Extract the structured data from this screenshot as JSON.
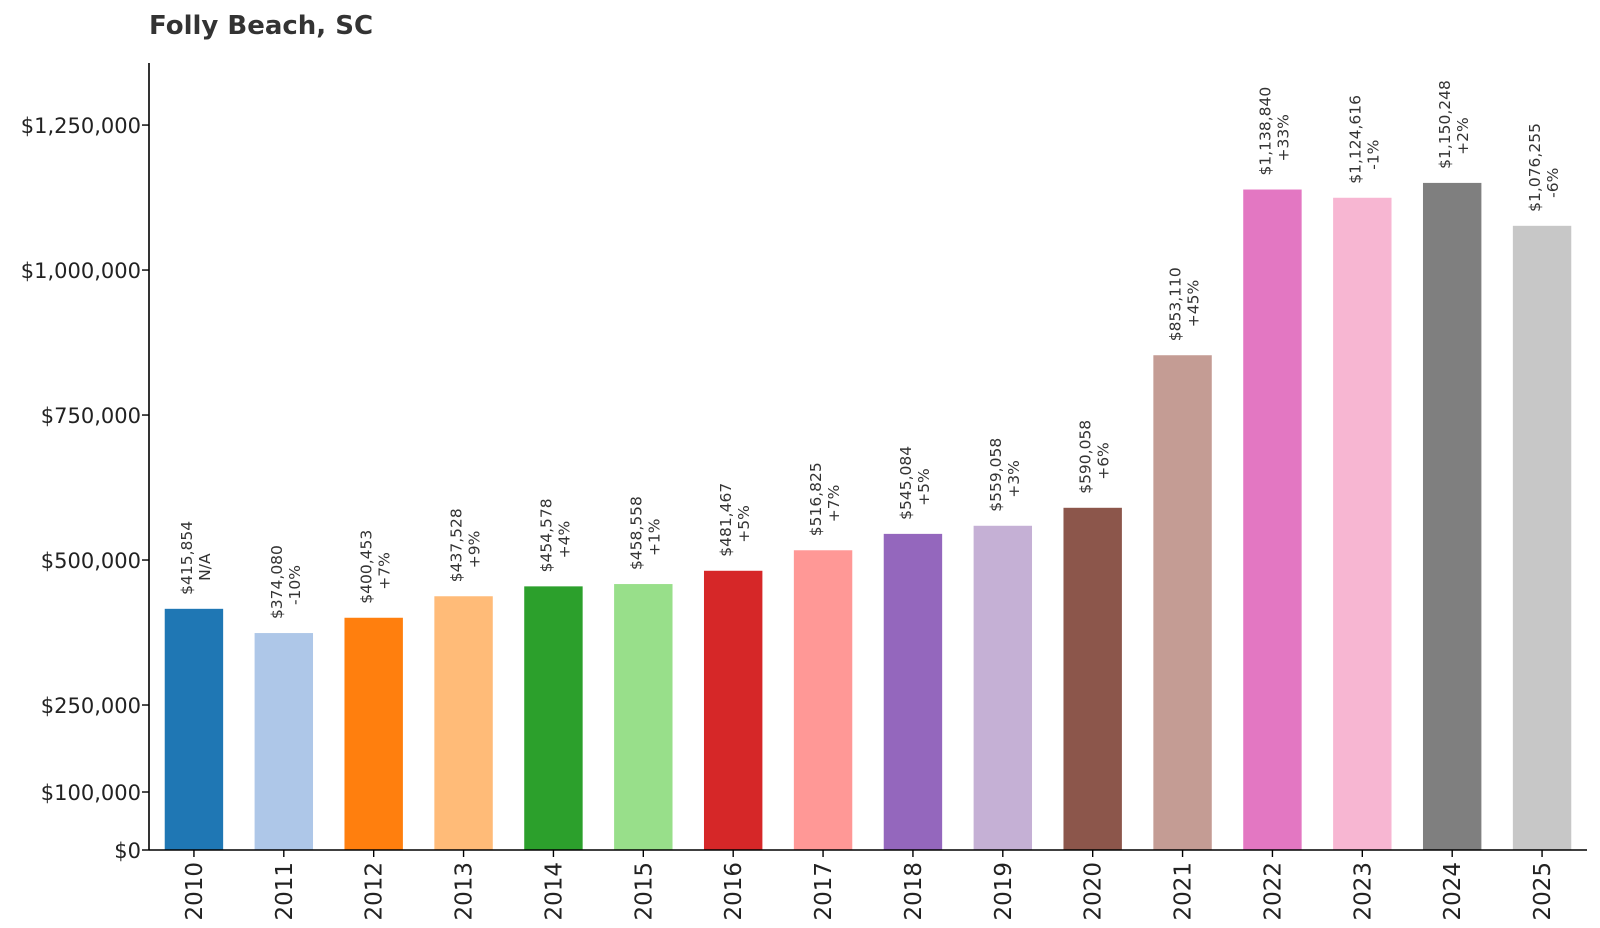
{
  "chart_data": {
    "type": "bar",
    "title": "Folly Beach, SC",
    "xlabel": "",
    "ylabel": "",
    "ylim": [
      0,
      1357000
    ],
    "yticks": [
      {
        "value": 0,
        "label": "$0"
      },
      {
        "value": 100000,
        "label": "$100,000"
      },
      {
        "value": 250000,
        "label": "$250,000"
      },
      {
        "value": 500000,
        "label": "$500,000"
      },
      {
        "value": 750000,
        "label": "$750,000"
      },
      {
        "value": 1000000,
        "label": "$1,000,000"
      },
      {
        "value": 1250000,
        "label": "$1,250,000"
      }
    ],
    "grid": false,
    "legend": "none",
    "categories": [
      "2010",
      "2011",
      "2012",
      "2013",
      "2014",
      "2015",
      "2016",
      "2017",
      "2018",
      "2019",
      "2020",
      "2021",
      "2022",
      "2023",
      "2024",
      "2025"
    ],
    "values": [
      415854,
      374080,
      400453,
      437528,
      454578,
      458558,
      481467,
      516825,
      545084,
      559058,
      590058,
      853110,
      1138840,
      1124616,
      1150248,
      1076255
    ],
    "value_labels": [
      "$415,854",
      "$374,080",
      "$400,453",
      "$437,528",
      "$454,578",
      "$458,558",
      "$481,467",
      "$516,825",
      "$545,084",
      "$559,058",
      "$590,058",
      "$853,110",
      "$1,138,840",
      "$1,124,616",
      "$1,150,248",
      "$1,076,255"
    ],
    "change_labels": [
      "N/A",
      "-10%",
      "+7%",
      "+9%",
      "+4%",
      "+1%",
      "+5%",
      "+7%",
      "+5%",
      "+3%",
      "+6%",
      "+45%",
      "+33%",
      "-1%",
      "+2%",
      "-6%"
    ],
    "colors": [
      "#1f77b4",
      "#aec7e8",
      "#ff7f0e",
      "#ffbb78",
      "#2ca02c",
      "#98df8a",
      "#d62728",
      "#ff9896",
      "#9467bd",
      "#c5b0d5",
      "#8c564b",
      "#c49c94",
      "#e377c2",
      "#f7b6d2",
      "#7f7f7f",
      "#c7c7c7"
    ]
  }
}
